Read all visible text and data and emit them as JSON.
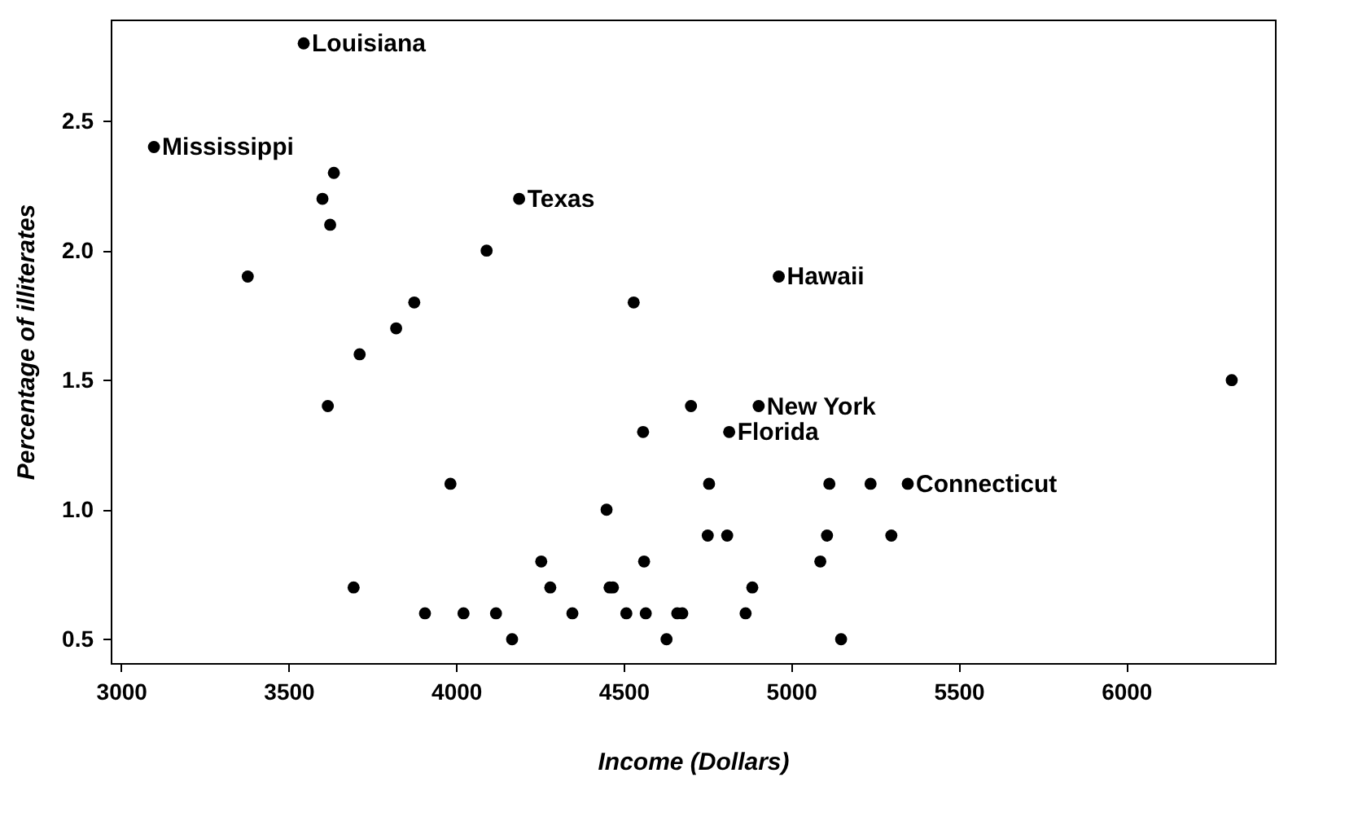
{
  "chart_data": {
    "type": "scatter",
    "xlabel": "Income (Dollars)",
    "ylabel": "Percentage of illiterates",
    "x": [
      3624,
      6315,
      4530,
      3378,
      5114,
      4884,
      5348,
      4809,
      4815,
      4091,
      4963,
      4119,
      5107,
      4458,
      4628,
      3712,
      3545,
      3694,
      5299,
      4755,
      4751,
      4675,
      3098,
      4254,
      4347,
      4508,
      5149,
      4281,
      5237,
      3601,
      4903,
      3875,
      5087,
      4561,
      3983,
      4660,
      4449,
      4558,
      3635,
      4167,
      3821,
      4188,
      4022,
      3907,
      4701,
      4864,
      3617,
      4468,
      4566
    ],
    "series": [
      {
        "color": "#000000",
        "values": [
          2.1,
          1.5,
          1.8,
          1.9,
          1.1,
          0.7,
          1.1,
          0.9,
          1.3,
          2.0,
          1.9,
          0.6,
          0.9,
          0.7,
          0.5,
          1.6,
          2.8,
          0.7,
          0.9,
          1.1,
          0.9,
          0.6,
          2.4,
          0.8,
          0.6,
          0.6,
          0.5,
          0.7,
          1.1,
          2.2,
          1.4,
          1.8,
          0.8,
          0.8,
          1.1,
          0.6,
          1.0,
          1.3,
          2.3,
          0.5,
          1.7,
          2.2,
          0.6,
          0.6,
          1.4,
          0.6,
          1.4,
          0.7,
          0.6
        ]
      }
    ],
    "annotations": [
      {
        "text": "Louisiana",
        "x": 3545,
        "y": 2.8
      },
      {
        "text": "Mississippi",
        "x": 3098,
        "y": 2.4
      },
      {
        "text": "Texas",
        "x": 4188,
        "y": 2.2
      },
      {
        "text": "Hawaii",
        "x": 4963,
        "y": 1.9
      },
      {
        "text": "New York",
        "x": 4903,
        "y": 1.4
      },
      {
        "text": "Florida",
        "x": 4815,
        "y": 1.3
      },
      {
        "text": "Connecticut",
        "x": 5348,
        "y": 1.1
      }
    ],
    "xlim": [
      2969,
      6444
    ],
    "ylim": [
      0.408,
      2.892
    ],
    "xticks": [
      3000,
      3500,
      4000,
      4500,
      5000,
      5500,
      6000
    ],
    "yticks": [
      0.5,
      {
        "value": 1,
        "label": "1.0"
      },
      1.5,
      {
        "value": 2,
        "label": "2.0"
      },
      2.5
    ],
    "grid": false,
    "marker": "circle"
  }
}
